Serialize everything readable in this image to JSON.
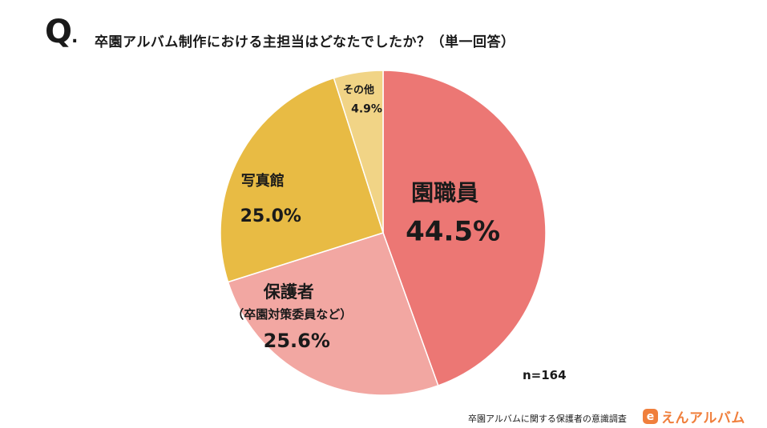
{
  "header": {
    "q_mark": "Q",
    "question": "卒園アルバム制作における主担当はどなたでしたか？（単一回答）"
  },
  "chart_data": {
    "type": "pie",
    "title": "卒園アルバム制作における主担当はどなたでしたか？（単一回答）",
    "start_angle_deg": 0,
    "direction": "clockwise",
    "slices": [
      {
        "label": "園職員",
        "sublabel": "",
        "value": 44.5,
        "display": "44.5%",
        "color": "#ec7774",
        "text_size": "large"
      },
      {
        "label": "保護者",
        "sublabel": "（卒園対策委員など）",
        "value": 25.6,
        "display": "25.6%",
        "color": "#f2a7a2",
        "text_size": "medium"
      },
      {
        "label": "写真館",
        "sublabel": "",
        "value": 25.0,
        "display": "25.0%",
        "color": "#e8bb44",
        "text_size": "medium"
      },
      {
        "label": "その他",
        "sublabel": "",
        "value": 4.9,
        "display": "4.9%",
        "color": "#f1d486",
        "text_size": "small"
      }
    ],
    "sample_size": "n=164"
  },
  "footer": {
    "note": "卒園アルバムに関する保護者の意識調査",
    "brand_icon": "e",
    "brand_name": "えんアルバム"
  }
}
